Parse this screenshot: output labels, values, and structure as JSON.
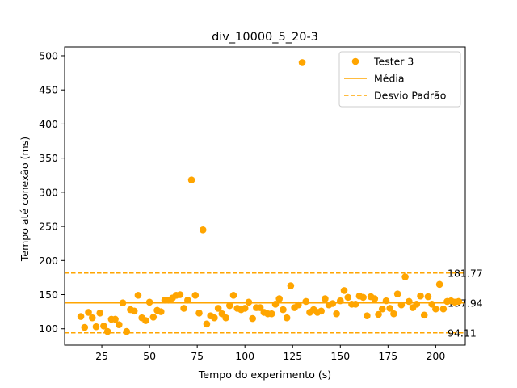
{
  "chart_data": {
    "type": "scatter",
    "title": "div_10000_5_20-3",
    "xlabel": "Tempo do experimento (s)",
    "ylabel": "Tempo até conexão (ms)",
    "xlim": [
      5.5,
      215.5
    ],
    "ylim": [
      76,
      513
    ],
    "x_ticks": [
      25,
      50,
      75,
      100,
      125,
      150,
      175,
      200
    ],
    "y_ticks": [
      100,
      150,
      200,
      250,
      300,
      350,
      400,
      450,
      500
    ],
    "grid": false,
    "legend_position": "top-right",
    "colors": {
      "series": "#ffa500",
      "axis": "#000000"
    },
    "series": [
      {
        "name": "Tester 3",
        "x": [
          14,
          16,
          18,
          20,
          22,
          24,
          26,
          28,
          30,
          32,
          34,
          36,
          38,
          40,
          42,
          44,
          46,
          48,
          50,
          52,
          54,
          56,
          58,
          60,
          62,
          64,
          66,
          68,
          70,
          72,
          74,
          76,
          78,
          80,
          82,
          84,
          86,
          88,
          90,
          92,
          94,
          96,
          98,
          100,
          102,
          104,
          106,
          108,
          110,
          112,
          114,
          116,
          118,
          120,
          122,
          124,
          126,
          128,
          130,
          132,
          134,
          136,
          138,
          140,
          142,
          144,
          146,
          148,
          150,
          152,
          154,
          156,
          158,
          160,
          162,
          164,
          166,
          168,
          170,
          172,
          174,
          176,
          178,
          180,
          182,
          184,
          186,
          188,
          190,
          192,
          194,
          196,
          198,
          200,
          202,
          204,
          206,
          208,
          210,
          212
        ],
        "y": [
          118,
          102,
          124,
          116,
          103,
          123,
          104,
          96,
          114,
          114,
          106,
          138,
          96,
          128,
          126,
          149,
          116,
          112,
          139,
          117,
          127,
          125,
          142,
          142,
          145,
          149,
          150,
          130,
          142,
          318,
          149,
          123,
          245,
          107,
          119,
          116,
          130,
          122,
          116,
          134,
          149,
          130,
          128,
          130,
          139,
          115,
          131,
          131,
          124,
          122,
          122,
          136,
          144,
          128,
          116,
          163,
          131,
          135,
          490,
          140,
          124,
          128,
          124,
          126,
          144,
          135,
          137,
          122,
          141,
          156,
          146,
          136,
          136,
          148,
          146,
          119,
          147,
          144,
          121,
          129,
          141,
          130,
          122,
          151,
          135,
          176,
          140,
          131,
          136,
          148,
          120,
          147,
          136,
          129,
          165,
          129,
          140,
          141,
          139,
          140
        ]
      }
    ],
    "reference_lines": [
      {
        "name": "Média",
        "value": 137.94,
        "label": "137.94",
        "style": "solid"
      },
      {
        "name": "Desvio Padrão",
        "value": 181.77,
        "label": "181.77",
        "style": "dashed"
      },
      {
        "name": "",
        "value": 94.11,
        "label": "94.11",
        "style": "dashed"
      }
    ],
    "legend": [
      {
        "label": "Tester 3",
        "marker": "circle"
      },
      {
        "label": "Média",
        "marker": "solid-line"
      },
      {
        "label": "Desvio Padrão",
        "marker": "dashed-line"
      }
    ]
  }
}
